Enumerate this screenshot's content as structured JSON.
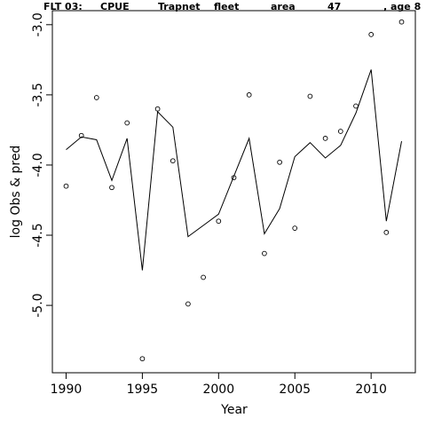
{
  "chart_data": {
    "type": "scatter",
    "title": "FLT 03:    CPUE       Trapnet   fleet         area         47             , age 8",
    "title_parts": [
      "FLT 03:",
      "CPUE",
      "Trapnet",
      "fleet",
      "area",
      "47",
      ", age 8"
    ],
    "xlabel": "Year",
    "ylabel": "log Obs & pred",
    "xlim": [
      1989.1,
      2012.9
    ],
    "ylim": [
      -5.48,
      -2.9
    ],
    "x_ticks": [
      1990,
      1995,
      2000,
      2005,
      2010
    ],
    "y_ticks": [
      -3.0,
      -3.5,
      -4.0,
      -4.5,
      -5.0
    ],
    "x_tick_labels": [
      "1990",
      "1995",
      "2000",
      "2005",
      "2010"
    ],
    "y_tick_labels": [
      "-3.0",
      "-3.5",
      "-4.0",
      "-4.5",
      "-5.0"
    ],
    "grid": false,
    "series": [
      {
        "style": "points",
        "x": [
          1990,
          1991,
          1992,
          1993,
          1994,
          1995,
          1996,
          1997,
          1998,
          1999,
          2000,
          2001,
          2002,
          2003,
          2004,
          2005,
          2006,
          2007,
          2008,
          2009,
          2010,
          2011,
          2012
        ],
        "y": [
          -4.15,
          -3.79,
          -3.52,
          -4.16,
          -3.7,
          -5.38,
          -3.6,
          -3.97,
          -4.99,
          -4.8,
          -4.4,
          -4.09,
          -3.5,
          -4.63,
          -3.98,
          -4.45,
          -3.51,
          -3.81,
          -3.76,
          -3.58,
          -3.07,
          -4.48,
          -2.98
        ]
      },
      {
        "style": "line",
        "x": [
          1990,
          1991,
          1992,
          1993,
          1994,
          1995,
          1996,
          1997,
          1998,
          1999,
          2000,
          2001,
          2002,
          2003,
          2004,
          2005,
          2006,
          2007,
          2008,
          2009,
          2010,
          2011,
          2012
        ],
        "y": [
          -3.89,
          -3.8,
          -3.82,
          -4.11,
          -3.81,
          -4.75,
          -3.62,
          -3.73,
          -4.51,
          -4.43,
          -4.35,
          -4.08,
          -3.81,
          -4.49,
          -4.31,
          -3.94,
          -3.84,
          -3.95,
          -3.86,
          -3.63,
          -3.32,
          -4.4,
          -3.83
        ]
      }
    ]
  }
}
